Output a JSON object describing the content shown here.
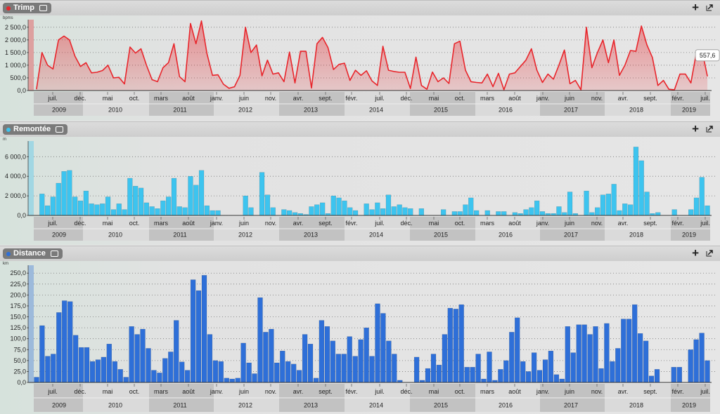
{
  "panels": [
    {
      "title": "Trimp",
      "dot_color": "#e8252b"
    },
    {
      "title": "Remontée",
      "dot_color": "#3dc4ef"
    },
    {
      "title": "Distance",
      "dot_color": "#2e6fd8"
    }
  ],
  "toolbar": {
    "add_icon": "plus-icon",
    "expand_icon": "expand-icon"
  },
  "time_axis": {
    "month_labels": [
      "juil.",
      "déc.",
      "mai",
      "oct.",
      "mars",
      "août",
      "janv.",
      "juin",
      "nov.",
      "avr.",
      "sept.",
      "févr.",
      "juil.",
      "déc.",
      "mai",
      "oct.",
      "mars",
      "août",
      "janv.",
      "juin",
      "nov.",
      "avr.",
      "sept.",
      "févr.",
      "juil."
    ],
    "year_labels": [
      "2009",
      "2010",
      "2011",
      "2012",
      "2013",
      "2014",
      "2015",
      "2016",
      "2017",
      "2018",
      "2019"
    ]
  },
  "chart_data": [
    {
      "type": "area",
      "title": "Trimp",
      "ylabel": "bpms",
      "color": "#e8252b",
      "ylim": [
        0,
        2800
      ],
      "yticks": [
        "0,0",
        "500,0",
        "1 000,0",
        "1 500,0",
        "2 000,0",
        "2 500,0"
      ],
      "ytick_values": [
        0,
        500,
        1000,
        1500,
        2000,
        2500
      ],
      "start": "2009-05",
      "tooltip": "557,6",
      "values": [
        50,
        1500,
        1000,
        850,
        2000,
        2150,
        2000,
        1350,
        950,
        1100,
        700,
        720,
        790,
        1000,
        500,
        520,
        260,
        1720,
        1480,
        1650,
        1000,
        430,
        350,
        900,
        1100,
        1850,
        550,
        350,
        2650,
        1850,
        2750,
        1450,
        600,
        620,
        250,
        90,
        150,
        600,
        2500,
        1500,
        1800,
        580,
        1200,
        650,
        700,
        350,
        1520,
        300,
        1550,
        1550,
        100,
        1850,
        2100,
        1700,
        830,
        1030,
        1080,
        400,
        800,
        600,
        780,
        380,
        200,
        1750,
        800,
        750,
        720,
        720,
        80,
        1320,
        200,
        50,
        730,
        350,
        500,
        280,
        1850,
        1950,
        800,
        350,
        320,
        300,
        650,
        150,
        680,
        30,
        650,
        700,
        950,
        1200,
        1650,
        800,
        320,
        650,
        450,
        1000,
        1600,
        270,
        400,
        30,
        2500,
        900,
        1500,
        2000,
        1100,
        2000,
        600,
        1000,
        1580,
        1550,
        2550,
        1800,
        1300,
        200,
        400,
        50,
        30,
        650,
        650,
        300,
        1500,
        1600,
        560
      ]
    },
    {
      "type": "bar",
      "title": "Remontée",
      "ylabel": "m",
      "color": "#3dc4ef",
      "ylim": [
        0,
        7600
      ],
      "yticks": [
        "0,0",
        "2 000,0",
        "4 000,0",
        "6 000,0"
      ],
      "ytick_values": [
        0,
        2000,
        4000,
        6000
      ],
      "start": "2009-05",
      "values": [
        0,
        2200,
        1000,
        1900,
        3300,
        4500,
        4600,
        1900,
        1500,
        2500,
        1200,
        1100,
        1200,
        1900,
        600,
        1200,
        600,
        3800,
        3000,
        2800,
        1300,
        900,
        700,
        1500,
        1900,
        3800,
        900,
        800,
        4000,
        3100,
        4600,
        1000,
        500,
        500,
        0,
        0,
        0,
        0,
        2000,
        800,
        0,
        4400,
        2100,
        800,
        0,
        600,
        500,
        300,
        200,
        100,
        900,
        1100,
        1300,
        200,
        2000,
        1800,
        1500,
        800,
        500,
        0,
        1200,
        600,
        1300,
        700,
        2100,
        900,
        1100,
        800,
        700,
        0,
        700,
        0,
        0,
        0,
        600,
        0,
        400,
        400,
        1100,
        1800,
        500,
        0,
        500,
        0,
        400,
        400,
        0,
        300,
        200,
        600,
        800,
        1500,
        400,
        200,
        200,
        900,
        300,
        2400,
        200,
        0,
        2500,
        300,
        800,
        2100,
        2200,
        3200,
        500,
        1200,
        1100,
        7000,
        5600,
        2400,
        200,
        300,
        0,
        0,
        600,
        0,
        0,
        600,
        1800,
        3900,
        1000
      ]
    },
    {
      "type": "bar",
      "title": "Distance",
      "ylabel": "km",
      "color": "#2e6fd8",
      "ylim": [
        0,
        268
      ],
      "yticks": [
        "0,0",
        "25,0",
        "50,0",
        "75,0",
        "100,0",
        "125,0",
        "150,0",
        "175,0",
        "200,0",
        "225,0",
        "250,0"
      ],
      "ytick_values": [
        0,
        25,
        50,
        75,
        100,
        125,
        150,
        175,
        200,
        225,
        250
      ],
      "start": "2009-05",
      "values": [
        12,
        130,
        60,
        65,
        160,
        187,
        185,
        108,
        80,
        80,
        48,
        52,
        58,
        88,
        48,
        30,
        12,
        128,
        110,
        122,
        78,
        28,
        22,
        55,
        70,
        142,
        47,
        28,
        235,
        210,
        245,
        110,
        50,
        48,
        10,
        8,
        10,
        90,
        45,
        20,
        194,
        115,
        122,
        45,
        72,
        48,
        42,
        28,
        110,
        88,
        10,
        142,
        128,
        95,
        65,
        65,
        105,
        60,
        98,
        125,
        60,
        180,
        158,
        95,
        65,
        5,
        0,
        0,
        58,
        5,
        32,
        65,
        40,
        110,
        170,
        168,
        178,
        35,
        35,
        65,
        8,
        70,
        5,
        30,
        50,
        115,
        148,
        48,
        25,
        68,
        28,
        52,
        72,
        18,
        8,
        128,
        68,
        132,
        132,
        110,
        128,
        32,
        135,
        48,
        78,
        145,
        145,
        178,
        112,
        95,
        15,
        30,
        0,
        0,
        35,
        35,
        0,
        75,
        98,
        113,
        50
      ]
    }
  ]
}
